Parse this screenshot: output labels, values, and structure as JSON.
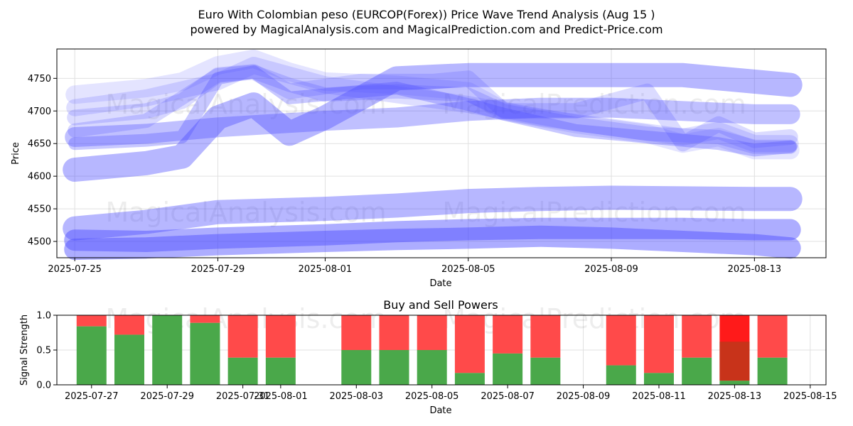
{
  "title_line1": "Euro With Colombian peso (EURCOP(Forex)) Price Wave Trend Analysis (Aug 15 )",
  "title_line2": "powered by MagicalAnalysis.com and MagicalPrediction.com and Predict-Price.com",
  "watermarks": [
    "MagicalAnalysis.com",
    "MagicalPrediction.com"
  ],
  "colors": {
    "wave": "#4a4aff",
    "buy": "#4aa84a",
    "sell": "#ff4a4a",
    "sell_strong": "#ff1a1a",
    "overlap": "#c8331a",
    "grid": "#e0e0e0"
  },
  "chart_data": [
    {
      "type": "line",
      "title": "",
      "xlabel": "Date",
      "ylabel": "Price",
      "xlim": [
        "2025-07-24T12:00",
        "2025-08-15T00:00"
      ],
      "ylim": [
        4475,
        4795
      ],
      "x_ticks": [
        "2025-07-25",
        "2025-07-29",
        "2025-08-01",
        "2025-08-05",
        "2025-08-09",
        "2025-08-13"
      ],
      "y_ticks": [
        4500,
        4550,
        4600,
        4650,
        4700,
        4750
      ],
      "grid": true,
      "series": [
        {
          "width": 26,
          "opacity": 0.15,
          "x": [
            "2025-07-25",
            "2025-07-27",
            "2025-07-28",
            "2025-07-29",
            "2025-07-30",
            "2025-07-31",
            "2025-08-01",
            "2025-08-03",
            "2025-08-05",
            "2025-08-06",
            "2025-08-08",
            "2025-08-10",
            "2025-08-11",
            "2025-08-12",
            "2025-08-13",
            "2025-08-14"
          ],
          "values": [
            4725,
            4735,
            4745,
            4770,
            4780,
            4760,
            4745,
            4740,
            4730,
            4700,
            4680,
            4665,
            4650,
            4660,
            4640,
            4640
          ]
        },
        {
          "width": 24,
          "opacity": 0.18,
          "x": [
            "2025-07-25",
            "2025-07-27",
            "2025-07-29",
            "2025-07-30",
            "2025-08-01",
            "2025-08-03",
            "2025-08-05",
            "2025-08-07",
            "2025-08-09",
            "2025-08-11",
            "2025-08-12",
            "2025-08-13",
            "2025-08-14"
          ],
          "values": [
            4705,
            4720,
            4745,
            4770,
            4740,
            4725,
            4710,
            4690,
            4675,
            4660,
            4670,
            4650,
            4650
          ]
        },
        {
          "width": 22,
          "opacity": 0.2,
          "x": [
            "2025-07-25",
            "2025-07-27",
            "2025-07-28",
            "2025-07-29",
            "2025-07-30",
            "2025-07-31",
            "2025-08-02",
            "2025-08-04",
            "2025-08-05",
            "2025-08-06",
            "2025-08-08",
            "2025-08-10",
            "2025-08-11",
            "2025-08-12",
            "2025-08-13",
            "2025-08-14"
          ],
          "values": [
            4690,
            4700,
            4715,
            4755,
            4760,
            4730,
            4745,
            4745,
            4750,
            4700,
            4700,
            4730,
            4650,
            4680,
            4655,
            4660
          ]
        },
        {
          "width": 20,
          "opacity": 0.22,
          "x": [
            "2025-07-25",
            "2025-07-27",
            "2025-07-28",
            "2025-07-29",
            "2025-07-30",
            "2025-07-31",
            "2025-08-01",
            "2025-08-03",
            "2025-08-05",
            "2025-08-06",
            "2025-08-08",
            "2025-08-10",
            "2025-08-12",
            "2025-08-13",
            "2025-08-14"
          ],
          "values": [
            4670,
            4685,
            4720,
            4755,
            4760,
            4740,
            4725,
            4730,
            4725,
            4700,
            4680,
            4665,
            4660,
            4645,
            4645
          ]
        },
        {
          "width": 18,
          "opacity": 0.3,
          "x": [
            "2025-07-25",
            "2025-07-27",
            "2025-07-28",
            "2025-07-29",
            "2025-07-30",
            "2025-07-31",
            "2025-08-01",
            "2025-08-03",
            "2025-08-05",
            "2025-08-06",
            "2025-08-08",
            "2025-08-10",
            "2025-08-11",
            "2025-08-12",
            "2025-08-13",
            "2025-08-14"
          ],
          "values": [
            4650,
            4655,
            4660,
            4750,
            4760,
            4720,
            4725,
            4735,
            4710,
            4695,
            4670,
            4660,
            4655,
            4650,
            4640,
            4645
          ]
        },
        {
          "width": 28,
          "opacity": 0.35,
          "x": [
            "2025-07-25",
            "2025-07-27",
            "2025-07-29",
            "2025-08-01",
            "2025-08-03",
            "2025-08-05",
            "2025-08-07",
            "2025-08-09",
            "2025-08-11",
            "2025-08-13",
            "2025-08-14"
          ],
          "values": [
            4660,
            4665,
            4675,
            4685,
            4690,
            4700,
            4705,
            4705,
            4700,
            4695,
            4695
          ]
        },
        {
          "width": 34,
          "opacity": 0.4,
          "x": [
            "2025-07-25",
            "2025-07-27",
            "2025-07-28",
            "2025-07-29",
            "2025-07-30",
            "2025-07-31",
            "2025-08-01",
            "2025-08-03",
            "2025-08-05",
            "2025-08-07",
            "2025-08-09",
            "2025-08-11",
            "2025-08-13",
            "2025-08-14"
          ],
          "values": [
            4610,
            4620,
            4630,
            4690,
            4710,
            4665,
            4690,
            4750,
            4755,
            4755,
            4755,
            4755,
            4745,
            4740
          ]
        },
        {
          "width": 34,
          "opacity": 0.4,
          "x": [
            "2025-07-25",
            "2025-07-27",
            "2025-07-29",
            "2025-08-01",
            "2025-08-03",
            "2025-08-05",
            "2025-08-07",
            "2025-08-09",
            "2025-08-11",
            "2025-08-13",
            "2025-08-14"
          ],
          "values": [
            4520,
            4530,
            4545,
            4550,
            4555,
            4562,
            4565,
            4567,
            4566,
            4565,
            4565
          ]
        },
        {
          "width": 30,
          "opacity": 0.45,
          "x": [
            "2025-07-25",
            "2025-07-27",
            "2025-07-29",
            "2025-08-01",
            "2025-08-03",
            "2025-08-05",
            "2025-08-07",
            "2025-08-09",
            "2025-08-11",
            "2025-08-13",
            "2025-08-14"
          ],
          "values": [
            4502,
            4500,
            4505,
            4510,
            4515,
            4518,
            4520,
            4520,
            4520,
            4518,
            4518
          ]
        },
        {
          "width": 30,
          "opacity": 0.45,
          "x": [
            "2025-07-25",
            "2025-07-27",
            "2025-07-29",
            "2025-08-01",
            "2025-08-03",
            "2025-08-05",
            "2025-08-07",
            "2025-08-09",
            "2025-08-11",
            "2025-08-13",
            "2025-08-14"
          ],
          "values": [
            4488,
            4490,
            4495,
            4500,
            4503,
            4505,
            4508,
            4505,
            4500,
            4495,
            4490
          ]
        }
      ]
    },
    {
      "type": "bar",
      "title": "Buy and Sell Powers",
      "xlabel": "Date",
      "ylabel": "Signal Strength",
      "xlim": [
        "2025-07-26T02:00",
        "2025-08-15T10:00"
      ],
      "ylim": [
        0,
        1
      ],
      "x_ticks": [
        "2025-07-27",
        "2025-07-29",
        "2025-07-31",
        "2025-08-01",
        "2025-08-03",
        "2025-08-05",
        "2025-08-07",
        "2025-08-09",
        "2025-08-11",
        "2025-08-13",
        "2025-08-15"
      ],
      "y_ticks": [
        0.0,
        0.5,
        1.0
      ],
      "y_tick_labels": [
        "0.0",
        "0.5",
        "1.0"
      ],
      "grid": true,
      "series": [
        {
          "name": "buy",
          "x": [
            "2025-07-27",
            "2025-07-28",
            "2025-07-29",
            "2025-07-30",
            "2025-07-31",
            "2025-08-01",
            "2025-08-03",
            "2025-08-04",
            "2025-08-05",
            "2025-08-06",
            "2025-08-07",
            "2025-08-08",
            "2025-08-10",
            "2025-08-11",
            "2025-08-12",
            "2025-08-13",
            "2025-08-14"
          ],
          "values": [
            0.84,
            0.72,
            1.0,
            0.89,
            0.39,
            0.39,
            0.5,
            0.5,
            0.5,
            0.17,
            0.45,
            0.39,
            0.28,
            0.17,
            0.39,
            0.06,
            0.39
          ]
        },
        {
          "name": "sell",
          "x": [
            "2025-07-27",
            "2025-07-28",
            "2025-07-29",
            "2025-07-30",
            "2025-07-31",
            "2025-08-01",
            "2025-08-03",
            "2025-08-04",
            "2025-08-05",
            "2025-08-06",
            "2025-08-07",
            "2025-08-08",
            "2025-08-10",
            "2025-08-11",
            "2025-08-12",
            "2025-08-13",
            "2025-08-14"
          ],
          "values": [
            0.16,
            0.28,
            0.0,
            0.11,
            0.61,
            0.61,
            0.5,
            0.5,
            0.5,
            0.83,
            0.55,
            0.61,
            0.72,
            0.83,
            0.61,
            0.94,
            0.61
          ]
        },
        {
          "name": "overlap",
          "x": [
            "2025-08-13"
          ],
          "values": [
            0.62
          ]
        }
      ]
    }
  ]
}
